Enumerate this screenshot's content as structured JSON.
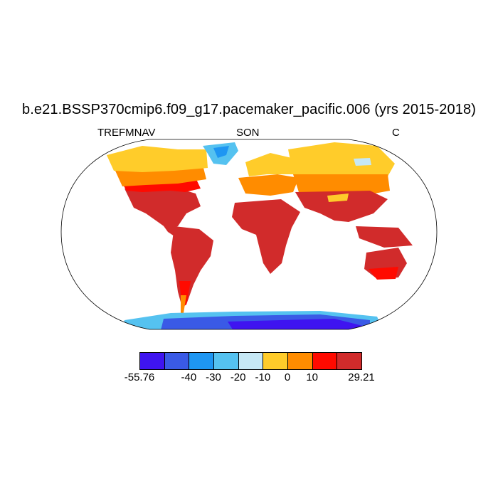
{
  "title": "b.e21.BSSP370cmip6.f09_g17.pacemaker_pacific.006 (yrs 2015-2018)",
  "left_string": "TREFMNAV",
  "center_string": "SON",
  "right_string": "C",
  "colorbar": {
    "colors": [
      "#3f14f0",
      "#3a5ae6",
      "#1e96f2",
      "#55c2f0",
      "#c6e8f5",
      "#ffcc2a",
      "#ff8c00",
      "#ff0a00",
      "#d12b2b"
    ],
    "labels": [
      {
        "text": "-55.76",
        "index": 0
      },
      {
        "text": "-40",
        "index": 2
      },
      {
        "text": "-30",
        "index": 3
      },
      {
        "text": "-20",
        "index": 4
      },
      {
        "text": "-10",
        "index": 5
      },
      {
        "text": "0",
        "index": 6
      },
      {
        "text": "10",
        "index": 7
      },
      {
        "text": "29.21",
        "index": 9
      }
    ]
  },
  "map": {
    "projection": "robinson",
    "variable_units": "C"
  }
}
